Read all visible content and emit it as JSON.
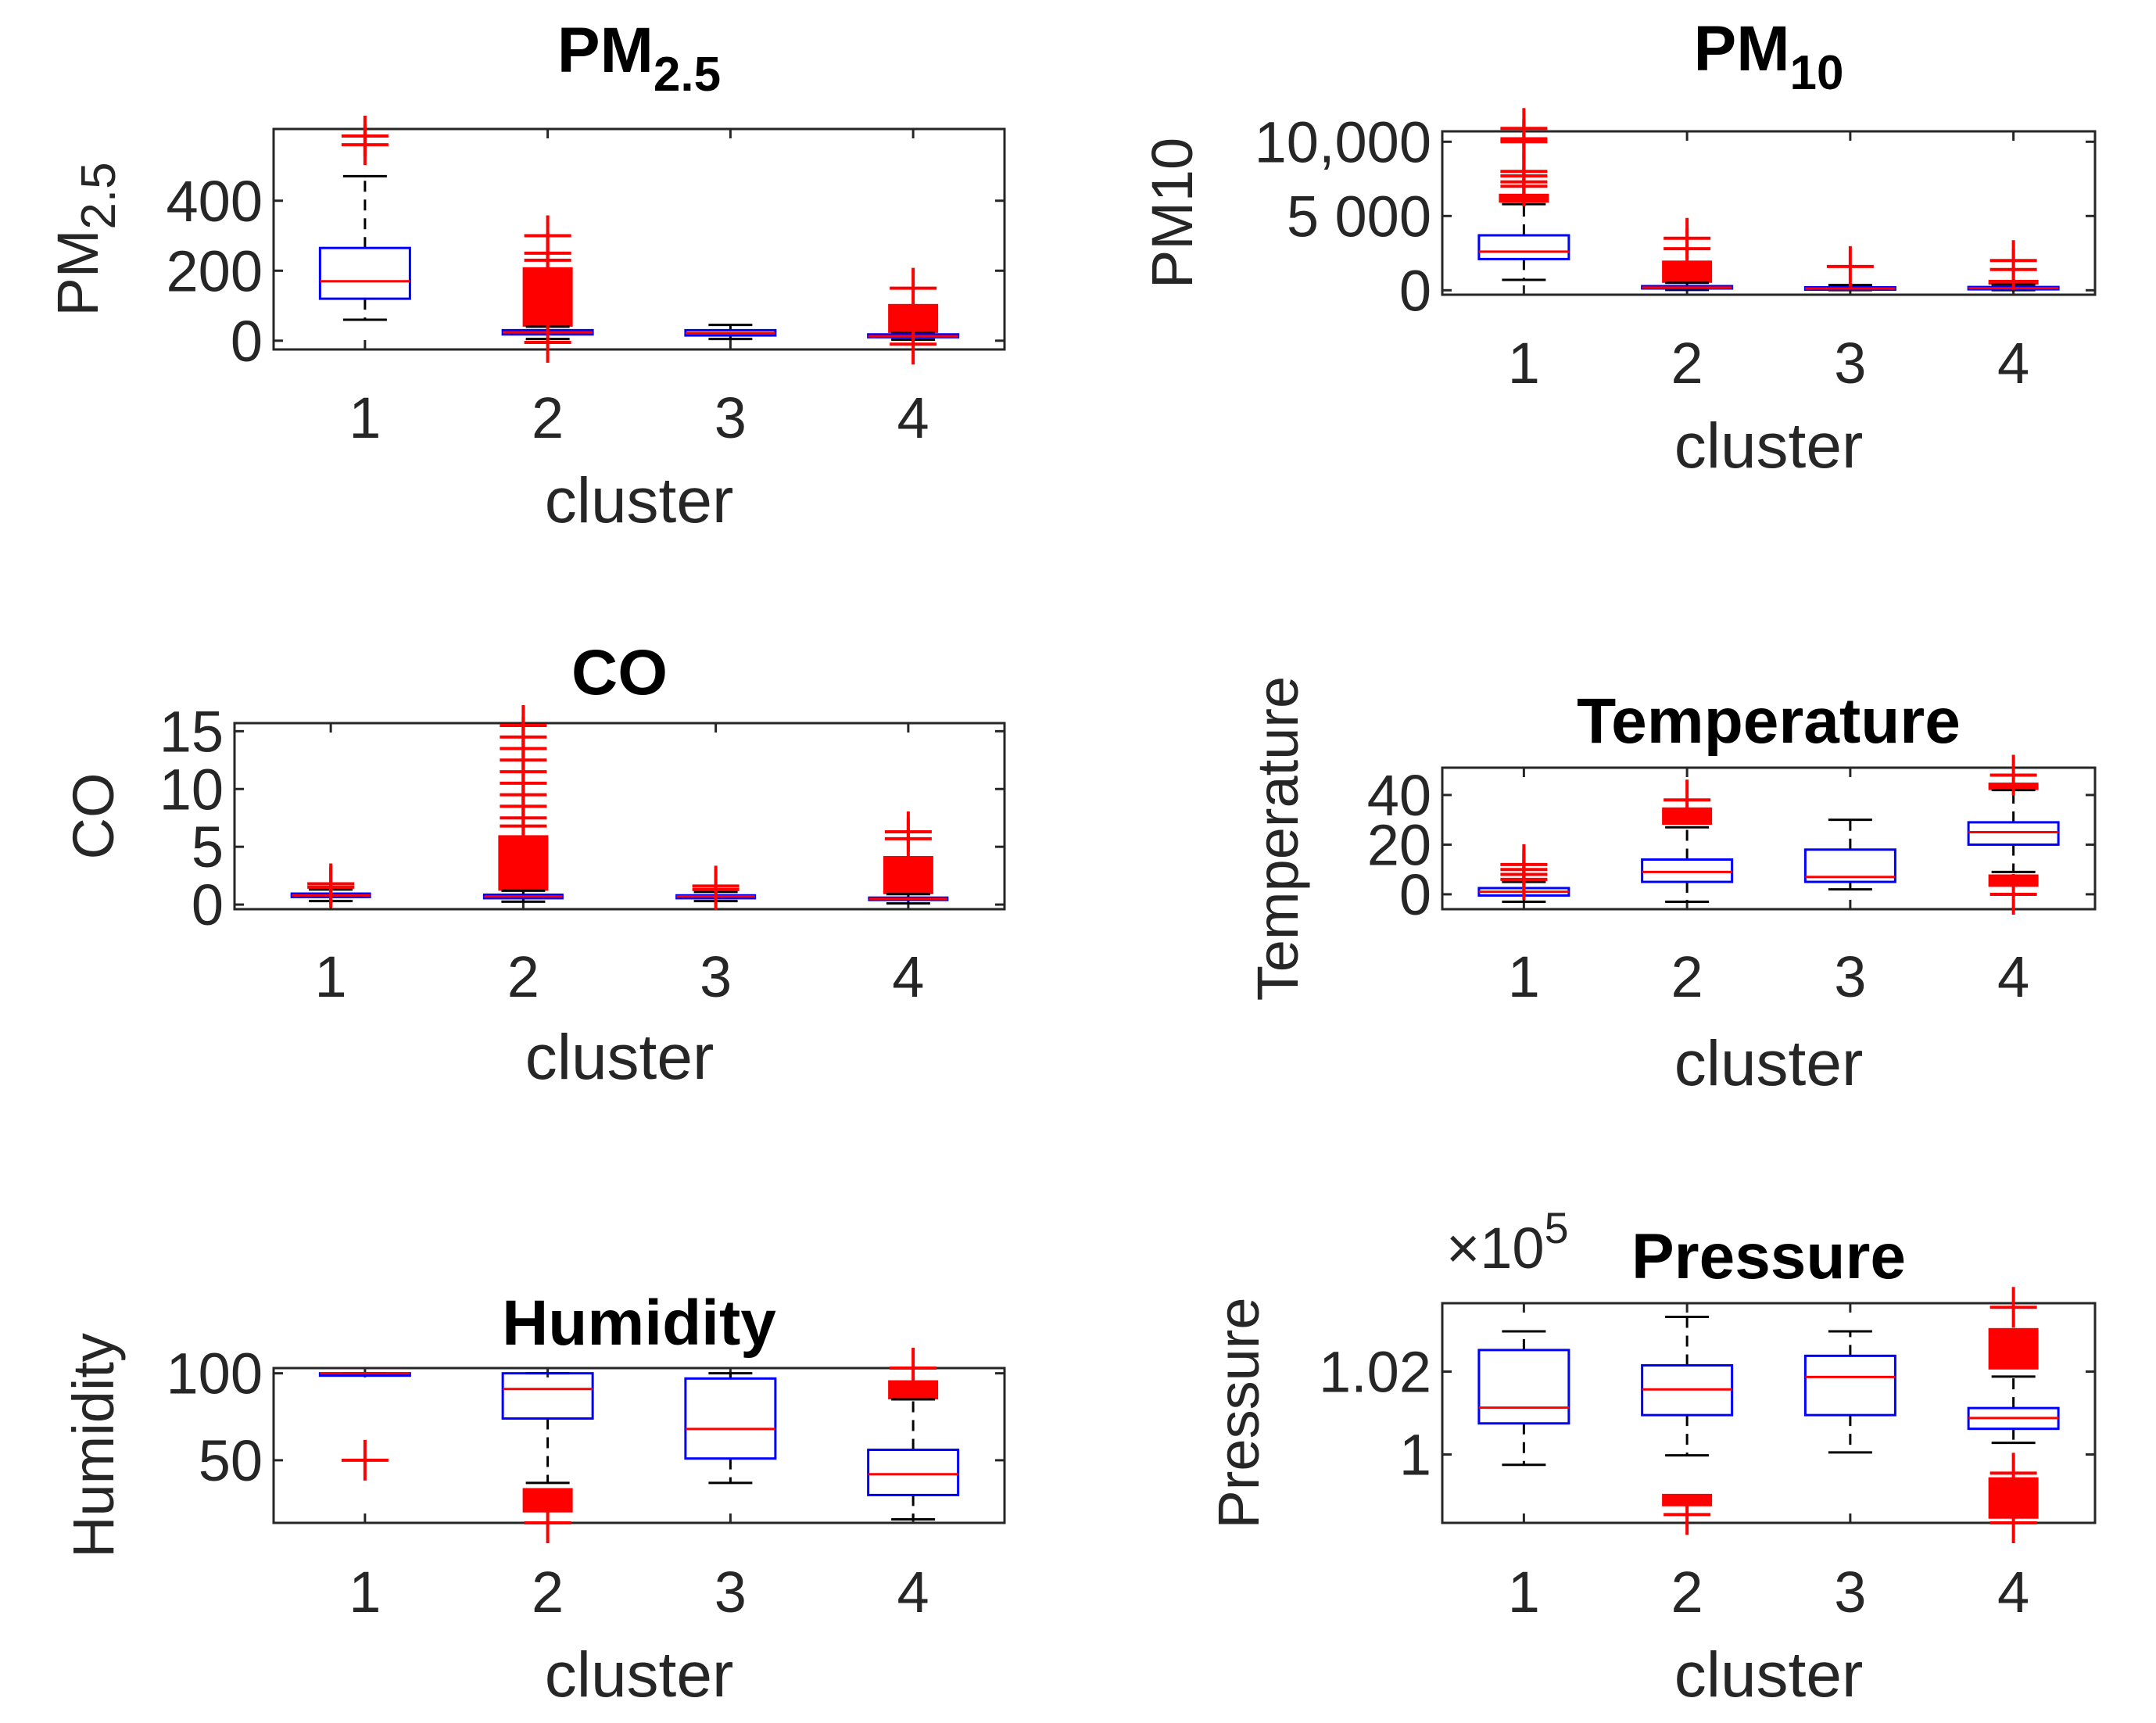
{
  "chart_data": [
    {
      "type": "box",
      "title": "PM",
      "title_sub": "2.5",
      "ylabel": "PM",
      "ylabel_sub": "2.5",
      "xlabel": "cluster",
      "categories": [
        "1",
        "2",
        "3",
        "4"
      ],
      "ylim": [
        -25,
        605
      ],
      "yticks": [
        0,
        200,
        400
      ],
      "ytick_labels": [
        "0",
        "200",
        "400"
      ],
      "boxes": [
        {
          "q1": 120,
          "median": 170,
          "q3": 265,
          "whisker_low": 60,
          "whisker_high": 470,
          "outliers": [
            560,
            585
          ]
        },
        {
          "q1": 18,
          "median": 24,
          "q3": 30,
          "whisker_low": 5,
          "whisker_high": 40,
          "outlier_ranges": [
            [
              40,
              210
            ]
          ],
          "outliers": [
            230,
            250,
            300,
            -5
          ]
        },
        {
          "q1": 15,
          "median": 22,
          "q3": 30,
          "whisker_low": 5,
          "whisker_high": 45,
          "outliers": []
        },
        {
          "q1": 10,
          "median": 13,
          "q3": 18,
          "whisker_low": 3,
          "whisker_high": 22,
          "outlier_ranges": [
            [
              22,
              105
            ]
          ],
          "outliers": [
            150,
            -10
          ]
        }
      ]
    },
    {
      "type": "box",
      "title": "PM",
      "title_sub": "10",
      "ylabel": "PM10",
      "xlabel": "cluster",
      "categories": [
        "1",
        "2",
        "3",
        "4"
      ],
      "ylim": [
        -300,
        10700
      ],
      "yticks": [
        0,
        5000,
        10000
      ],
      "ytick_labels": [
        "0",
        "5 000",
        "10,000"
      ],
      "boxes": [
        {
          "q1": 2100,
          "median": 2600,
          "q3": 3700,
          "whisker_low": 700,
          "whisker_high": 5800,
          "outlier_ranges": [
            [
              5900,
              6500
            ]
          ],
          "outliers": [
            7000,
            7300,
            7700,
            8000,
            10000,
            10200,
            10900
          ]
        },
        {
          "q1": 120,
          "median": 180,
          "q3": 280,
          "whisker_low": 20,
          "whisker_high": 500,
          "outlier_ranges": [
            [
              500,
              2000
            ]
          ],
          "outliers": [
            2800,
            3500
          ]
        },
        {
          "q1": 80,
          "median": 120,
          "q3": 200,
          "whisker_low": 10,
          "whisker_high": 350,
          "outliers": [
            1600
          ]
        },
        {
          "q1": 90,
          "median": 140,
          "q3": 220,
          "whisker_low": 10,
          "whisker_high": 380,
          "outlier_ranges": [
            [
              380,
              700
            ]
          ],
          "outliers": [
            1400,
            2000
          ]
        }
      ]
    },
    {
      "type": "box",
      "title": "CO",
      "ylabel": "CO",
      "xlabel": "cluster",
      "categories": [
        "1",
        "2",
        "3",
        "4"
      ],
      "ylim": [
        -0.4,
        15.7
      ],
      "yticks": [
        0,
        5,
        10,
        15
      ],
      "ytick_labels": [
        "0",
        "5",
        "10",
        "15"
      ],
      "boxes": [
        {
          "q1": 0.65,
          "median": 0.8,
          "q3": 0.95,
          "whisker_low": 0.3,
          "whisker_high": 1.3,
          "outliers": [
            1.5,
            1.8
          ]
        },
        {
          "q1": 0.55,
          "median": 0.7,
          "q3": 0.85,
          "whisker_low": 0.25,
          "whisker_high": 1.2,
          "outlier_ranges": [
            [
              1.2,
              6.0
            ]
          ],
          "outliers": [
            6.8,
            7.5,
            8.5,
            9.5,
            10.5,
            11.5,
            12.5,
            13.5,
            14.5,
            15.5
          ]
        },
        {
          "q1": 0.55,
          "median": 0.7,
          "q3": 0.8,
          "whisker_low": 0.3,
          "whisker_high": 1.1,
          "outliers": [
            1.3,
            1.6
          ]
        },
        {
          "q1": 0.4,
          "median": 0.5,
          "q3": 0.6,
          "whisker_low": 0.1,
          "whisker_high": 0.9,
          "outlier_ranges": [
            [
              0.9,
              4.2
            ]
          ],
          "outliers": [
            5.7,
            6.3
          ]
        }
      ]
    },
    {
      "type": "box",
      "title": "Temperature",
      "ylabel": "Temperature",
      "xlabel": "cluster",
      "categories": [
        "1",
        "2",
        "3",
        "4"
      ],
      "ylim": [
        -6,
        51
      ],
      "yticks": [
        0,
        20,
        40
      ],
      "ytick_labels": [
        "0",
        "20",
        "40"
      ],
      "boxes": [
        {
          "q1": -0.5,
          "median": 1,
          "q3": 2.5,
          "whisker_low": -3,
          "whisker_high": 5,
          "outliers": [
            6,
            8,
            10,
            12
          ]
        },
        {
          "q1": 5,
          "median": 9,
          "q3": 14,
          "whisker_low": -3,
          "whisker_high": 27,
          "outlier_ranges": [
            [
              28,
              35
            ]
          ],
          "outliers": [
            38
          ]
        },
        {
          "q1": 5,
          "median": 7,
          "q3": 18,
          "whisker_low": 2,
          "whisker_high": 30,
          "outliers": []
        },
        {
          "q1": 20,
          "median": 25,
          "q3": 29,
          "whisker_low": 9,
          "whisker_high": 42,
          "outlier_ranges": [
            [
              42,
              45
            ],
            [
              3,
              8
            ]
          ],
          "outliers": [
            48,
            0
          ]
        }
      ]
    },
    {
      "type": "box",
      "title": "Humidity",
      "ylabel": "Humidity",
      "xlabel": "cluster",
      "categories": [
        "1",
        "2",
        "3",
        "4"
      ],
      "ylim": [
        14,
        103
      ],
      "yticks": [
        50,
        100
      ],
      "ytick_labels": [
        "50",
        "100"
      ],
      "boxes": [
        {
          "q1": 100,
          "median": 100,
          "q3": 100,
          "whisker_low": 100,
          "whisker_high": 100,
          "outliers": [
            50
          ]
        },
        {
          "q1": 74,
          "median": 91,
          "q3": 100,
          "whisker_low": 37,
          "whisker_high": 100,
          "outlier_ranges": [
            [
              20,
              34
            ]
          ],
          "outliers": [
            14
          ]
        },
        {
          "q1": 51,
          "median": 68,
          "q3": 97,
          "whisker_low": 37,
          "whisker_high": 100,
          "outliers": []
        },
        {
          "q1": 30,
          "median": 42,
          "q3": 56,
          "whisker_low": 16,
          "whisker_high": 85,
          "outlier_ranges": [
            [
              85,
              96
            ]
          ],
          "outliers": [
            103
          ]
        }
      ]
    },
    {
      "type": "box",
      "title": "Pressure",
      "ylabel": "Pressure",
      "xlabel": "cluster",
      "exponent_label": "×10",
      "exponent_power": "5",
      "categories": [
        "1",
        "2",
        "3",
        "4"
      ],
      "ylim": [
        0.9835,
        1.0365
      ],
      "yticks": [
        1.0,
        1.02
      ],
      "ytick_labels": [
        "1",
        "1.02"
      ],
      "boxes": [
        {
          "q1": 1.0075,
          "median": 1.0113,
          "q3": 1.0252,
          "whisker_low": 0.9975,
          "whisker_high": 1.0297,
          "outliers": []
        },
        {
          "q1": 1.0095,
          "median": 1.0157,
          "q3": 1.0215,
          "whisker_low": 0.9998,
          "whisker_high": 1.0332,
          "outlier_ranges": [
            [
              0.9875,
              0.9905
            ]
          ],
          "outliers": [
            0.9855
          ]
        },
        {
          "q1": 1.0095,
          "median": 1.0187,
          "q3": 1.0238,
          "whisker_low": 1.0005,
          "whisker_high": 1.0297,
          "outliers": []
        },
        {
          "q1": 1.0062,
          "median": 1.0088,
          "q3": 1.0112,
          "whisker_low": 1.0028,
          "whisker_high": 1.0188,
          "outlier_ranges": [
            [
              1.0205,
              1.0305
            ],
            [
              0.9845,
              0.9945
            ]
          ],
          "outliers": [
            1.0355,
            0.9955,
            0.9835
          ]
        }
      ]
    }
  ]
}
